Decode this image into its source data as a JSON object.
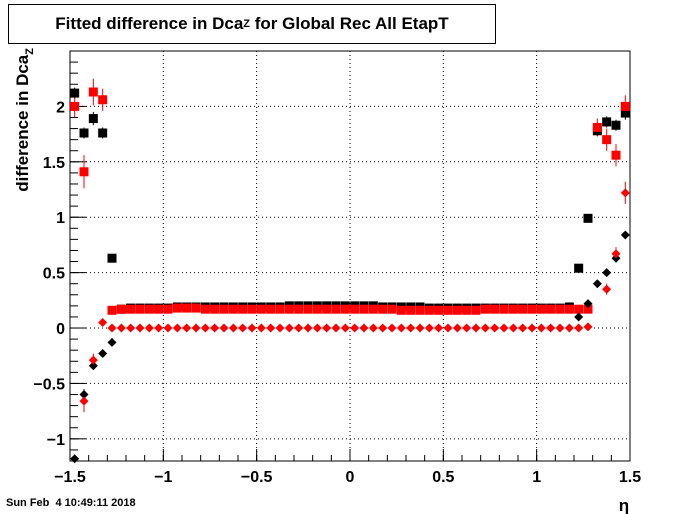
{
  "chart_data": {
    "type": "scatter",
    "title": {
      "main": "Fitted difference in Dca",
      "sub": "Z",
      "rest": " for Global Rec All EtapT"
    },
    "xlabel": "η",
    "ylabel": "difference in Dca",
    "ylabel_sub": "Z",
    "xlim": [
      -1.5,
      1.5
    ],
    "ylim": [
      -1.2,
      2.5
    ],
    "xticks": [
      {
        "v": -1.5,
        "label": "−1.5"
      },
      {
        "v": -1.0,
        "label": "−1"
      },
      {
        "v": -0.5,
        "label": "−0.5"
      },
      {
        "v": 0.0,
        "label": "0"
      },
      {
        "v": 0.5,
        "label": "0.5"
      },
      {
        "v": 1.0,
        "label": "1"
      },
      {
        "v": 1.5,
        "label": "1.5"
      }
    ],
    "yticks": [
      {
        "v": -1.0,
        "label": "−1"
      },
      {
        "v": -0.5,
        "label": "−0.5"
      },
      {
        "v": 0.0,
        "label": "0"
      },
      {
        "v": 0.5,
        "label": "0.5"
      },
      {
        "v": 1.0,
        "label": "1"
      },
      {
        "v": 1.5,
        "label": "1.5"
      },
      {
        "v": 2.0,
        "label": "2"
      }
    ],
    "grid": true,
    "series": [
      {
        "marker": "square",
        "color": "#000000",
        "points": [
          {
            "x": -1.475,
            "y": 2.12,
            "e": 0.05
          },
          {
            "x": -1.425,
            "y": 1.76,
            "e": 0.05
          },
          {
            "x": -1.375,
            "y": 1.89,
            "e": 0.06
          },
          {
            "x": -1.325,
            "y": 1.76,
            "e": 0.05
          },
          {
            "x": -1.275,
            "y": 0.63,
            "e": 0.02
          },
          {
            "x": -1.225,
            "y": 0.17,
            "e": 0
          },
          {
            "x": -1.175,
            "y": 0.18,
            "e": 0
          },
          {
            "x": -1.125,
            "y": 0.18,
            "e": 0
          },
          {
            "x": -1.075,
            "y": 0.18,
            "e": 0
          },
          {
            "x": -1.025,
            "y": 0.18,
            "e": 0
          },
          {
            "x": -0.975,
            "y": 0.18,
            "e": 0
          },
          {
            "x": -0.925,
            "y": 0.19,
            "e": 0
          },
          {
            "x": -0.875,
            "y": 0.19,
            "e": 0
          },
          {
            "x": -0.825,
            "y": 0.19,
            "e": 0
          },
          {
            "x": -0.775,
            "y": 0.19,
            "e": 0
          },
          {
            "x": -0.725,
            "y": 0.19,
            "e": 0
          },
          {
            "x": -0.675,
            "y": 0.19,
            "e": 0
          },
          {
            "x": -0.625,
            "y": 0.19,
            "e": 0
          },
          {
            "x": -0.575,
            "y": 0.19,
            "e": 0
          },
          {
            "x": -0.525,
            "y": 0.19,
            "e": 0
          },
          {
            "x": -0.475,
            "y": 0.19,
            "e": 0
          },
          {
            "x": -0.425,
            "y": 0.19,
            "e": 0
          },
          {
            "x": -0.375,
            "y": 0.19,
            "e": 0
          },
          {
            "x": -0.325,
            "y": 0.2,
            "e": 0
          },
          {
            "x": -0.275,
            "y": 0.2,
            "e": 0
          },
          {
            "x": -0.225,
            "y": 0.2,
            "e": 0
          },
          {
            "x": -0.175,
            "y": 0.2,
            "e": 0
          },
          {
            "x": -0.125,
            "y": 0.2,
            "e": 0
          },
          {
            "x": -0.075,
            "y": 0.2,
            "e": 0
          },
          {
            "x": -0.025,
            "y": 0.2,
            "e": 0
          },
          {
            "x": 0.025,
            "y": 0.2,
            "e": 0
          },
          {
            "x": 0.075,
            "y": 0.2,
            "e": 0
          },
          {
            "x": 0.125,
            "y": 0.2,
            "e": 0
          },
          {
            "x": 0.175,
            "y": 0.19,
            "e": 0
          },
          {
            "x": 0.225,
            "y": 0.19,
            "e": 0
          },
          {
            "x": 0.275,
            "y": 0.19,
            "e": 0
          },
          {
            "x": 0.325,
            "y": 0.19,
            "e": 0
          },
          {
            "x": 0.375,
            "y": 0.19,
            "e": 0
          },
          {
            "x": 0.425,
            "y": 0.18,
            "e": 0
          },
          {
            "x": 0.475,
            "y": 0.18,
            "e": 0
          },
          {
            "x": 0.525,
            "y": 0.18,
            "e": 0
          },
          {
            "x": 0.575,
            "y": 0.18,
            "e": 0
          },
          {
            "x": 0.625,
            "y": 0.18,
            "e": 0
          },
          {
            "x": 0.675,
            "y": 0.18,
            "e": 0
          },
          {
            "x": 0.725,
            "y": 0.18,
            "e": 0
          },
          {
            "x": 0.775,
            "y": 0.18,
            "e": 0
          },
          {
            "x": 0.825,
            "y": 0.18,
            "e": 0
          },
          {
            "x": 0.875,
            "y": 0.18,
            "e": 0
          },
          {
            "x": 0.925,
            "y": 0.18,
            "e": 0
          },
          {
            "x": 0.975,
            "y": 0.18,
            "e": 0
          },
          {
            "x": 1.025,
            "y": 0.18,
            "e": 0
          },
          {
            "x": 1.075,
            "y": 0.18,
            "e": 0
          },
          {
            "x": 1.125,
            "y": 0.18,
            "e": 0
          },
          {
            "x": 1.175,
            "y": 0.19,
            "e": 0
          },
          {
            "x": 1.225,
            "y": 0.54,
            "e": 0.02
          },
          {
            "x": 1.275,
            "y": 0.99,
            "e": 0.02
          },
          {
            "x": 1.325,
            "y": 1.78,
            "e": 0.05
          },
          {
            "x": 1.375,
            "y": 1.86,
            "e": 0.05
          },
          {
            "x": 1.425,
            "y": 1.83,
            "e": 0.05
          },
          {
            "x": 1.475,
            "y": 1.94,
            "e": 0.06
          }
        ]
      },
      {
        "marker": "square",
        "color": "#ff0000",
        "points": [
          {
            "x": -1.475,
            "y": 2.0,
            "e": 0.1
          },
          {
            "x": -1.425,
            "y": 1.41,
            "e": 0.15
          },
          {
            "x": -1.375,
            "y": 2.13,
            "e": 0.12
          },
          {
            "x": -1.325,
            "y": 2.06,
            "e": 0.1
          },
          {
            "x": -1.275,
            "y": 0.16,
            "e": 0
          },
          {
            "x": -1.225,
            "y": 0.17,
            "e": 0
          },
          {
            "x": -1.175,
            "y": 0.17,
            "e": 0
          },
          {
            "x": -1.125,
            "y": 0.17,
            "e": 0
          },
          {
            "x": -1.075,
            "y": 0.17,
            "e": 0
          },
          {
            "x": -1.025,
            "y": 0.17,
            "e": 0
          },
          {
            "x": -0.975,
            "y": 0.17,
            "e": 0
          },
          {
            "x": -0.925,
            "y": 0.18,
            "e": 0
          },
          {
            "x": -0.875,
            "y": 0.18,
            "e": 0
          },
          {
            "x": -0.825,
            "y": 0.18,
            "e": 0
          },
          {
            "x": -0.775,
            "y": 0.17,
            "e": 0
          },
          {
            "x": -0.725,
            "y": 0.17,
            "e": 0
          },
          {
            "x": -0.675,
            "y": 0.17,
            "e": 0
          },
          {
            "x": -0.625,
            "y": 0.17,
            "e": 0
          },
          {
            "x": -0.575,
            "y": 0.17,
            "e": 0
          },
          {
            "x": -0.525,
            "y": 0.17,
            "e": 0
          },
          {
            "x": -0.475,
            "y": 0.17,
            "e": 0
          },
          {
            "x": -0.425,
            "y": 0.17,
            "e": 0
          },
          {
            "x": -0.375,
            "y": 0.17,
            "e": 0
          },
          {
            "x": -0.325,
            "y": 0.17,
            "e": 0
          },
          {
            "x": -0.275,
            "y": 0.17,
            "e": 0
          },
          {
            "x": -0.225,
            "y": 0.17,
            "e": 0
          },
          {
            "x": -0.175,
            "y": 0.17,
            "e": 0
          },
          {
            "x": -0.125,
            "y": 0.17,
            "e": 0
          },
          {
            "x": -0.075,
            "y": 0.17,
            "e": 0
          },
          {
            "x": -0.025,
            "y": 0.17,
            "e": 0
          },
          {
            "x": 0.025,
            "y": 0.17,
            "e": 0
          },
          {
            "x": 0.075,
            "y": 0.17,
            "e": 0
          },
          {
            "x": 0.125,
            "y": 0.17,
            "e": 0
          },
          {
            "x": 0.175,
            "y": 0.17,
            "e": 0
          },
          {
            "x": 0.225,
            "y": 0.17,
            "e": 0
          },
          {
            "x": 0.275,
            "y": 0.16,
            "e": 0
          },
          {
            "x": 0.325,
            "y": 0.16,
            "e": 0
          },
          {
            "x": 0.375,
            "y": 0.16,
            "e": 0
          },
          {
            "x": 0.425,
            "y": 0.16,
            "e": 0
          },
          {
            "x": 0.475,
            "y": 0.16,
            "e": 0
          },
          {
            "x": 0.525,
            "y": 0.16,
            "e": 0
          },
          {
            "x": 0.575,
            "y": 0.16,
            "e": 0
          },
          {
            "x": 0.625,
            "y": 0.16,
            "e": 0
          },
          {
            "x": 0.675,
            "y": 0.16,
            "e": 0
          },
          {
            "x": 0.725,
            "y": 0.17,
            "e": 0
          },
          {
            "x": 0.775,
            "y": 0.17,
            "e": 0
          },
          {
            "x": 0.825,
            "y": 0.17,
            "e": 0
          },
          {
            "x": 0.875,
            "y": 0.17,
            "e": 0
          },
          {
            "x": 0.925,
            "y": 0.17,
            "e": 0
          },
          {
            "x": 0.975,
            "y": 0.17,
            "e": 0
          },
          {
            "x": 1.025,
            "y": 0.17,
            "e": 0
          },
          {
            "x": 1.075,
            "y": 0.17,
            "e": 0
          },
          {
            "x": 1.125,
            "y": 0.17,
            "e": 0
          },
          {
            "x": 1.175,
            "y": 0.17,
            "e": 0
          },
          {
            "x": 1.225,
            "y": 0.17,
            "e": 0
          },
          {
            "x": 1.275,
            "y": 0.17,
            "e": 0
          },
          {
            "x": 1.325,
            "y": 1.81,
            "e": 0.08
          },
          {
            "x": 1.375,
            "y": 1.7,
            "e": 0.1
          },
          {
            "x": 1.425,
            "y": 1.56,
            "e": 0.1
          },
          {
            "x": 1.475,
            "y": 2.0,
            "e": 0.1
          }
        ]
      },
      {
        "marker": "diamond",
        "color": "#000000",
        "points": [
          {
            "x": -1.475,
            "y": -1.18,
            "e": 0.03
          },
          {
            "x": -1.425,
            "y": -0.6,
            "e": 0.05
          },
          {
            "x": -1.375,
            "y": -0.34,
            "e": 0.03
          },
          {
            "x": -1.325,
            "y": -0.23,
            "e": 0.02
          },
          {
            "x": -1.275,
            "y": -0.13,
            "e": 0.01
          },
          {
            "x": 1.225,
            "y": 0.1,
            "e": 0.01
          },
          {
            "x": 1.275,
            "y": 0.22,
            "e": 0.02
          },
          {
            "x": 1.325,
            "y": 0.4,
            "e": 0.02
          },
          {
            "x": 1.375,
            "y": 0.5,
            "e": 0.02
          },
          {
            "x": 1.425,
            "y": 0.63,
            "e": 0.03
          },
          {
            "x": 1.475,
            "y": 0.84,
            "e": 0.03
          }
        ]
      },
      {
        "marker": "diamond",
        "color": "#ff0000",
        "points": [
          {
            "x": -1.425,
            "y": -0.66,
            "e": 0.1
          },
          {
            "x": -1.375,
            "y": -0.29,
            "e": 0.06
          },
          {
            "x": -1.325,
            "y": 0.05,
            "e": 0.03
          },
          {
            "x": -1.275,
            "y": 0.0,
            "e": 0
          },
          {
            "x": -1.225,
            "y": 0.0,
            "e": 0
          },
          {
            "x": -1.175,
            "y": 0.0,
            "e": 0
          },
          {
            "x": -1.125,
            "y": 0.0,
            "e": 0
          },
          {
            "x": -1.075,
            "y": 0.0,
            "e": 0
          },
          {
            "x": -1.025,
            "y": 0.0,
            "e": 0
          },
          {
            "x": -0.975,
            "y": 0.0,
            "e": 0
          },
          {
            "x": -0.925,
            "y": 0.0,
            "e": 0
          },
          {
            "x": -0.875,
            "y": 0.0,
            "e": 0
          },
          {
            "x": -0.825,
            "y": 0.0,
            "e": 0
          },
          {
            "x": -0.775,
            "y": 0.0,
            "e": 0
          },
          {
            "x": -0.725,
            "y": 0.0,
            "e": 0
          },
          {
            "x": -0.675,
            "y": 0.0,
            "e": 0
          },
          {
            "x": -0.625,
            "y": 0.0,
            "e": 0
          },
          {
            "x": -0.575,
            "y": 0.0,
            "e": 0
          },
          {
            "x": -0.525,
            "y": 0.0,
            "e": 0
          },
          {
            "x": -0.475,
            "y": 0.0,
            "e": 0
          },
          {
            "x": -0.425,
            "y": 0.0,
            "e": 0
          },
          {
            "x": -0.375,
            "y": 0.0,
            "e": 0
          },
          {
            "x": -0.325,
            "y": 0.0,
            "e": 0
          },
          {
            "x": -0.275,
            "y": 0.0,
            "e": 0
          },
          {
            "x": -0.225,
            "y": 0.0,
            "e": 0
          },
          {
            "x": -0.175,
            "y": 0.0,
            "e": 0
          },
          {
            "x": -0.125,
            "y": 0.0,
            "e": 0
          },
          {
            "x": -0.075,
            "y": 0.0,
            "e": 0
          },
          {
            "x": -0.025,
            "y": 0.0,
            "e": 0
          },
          {
            "x": 0.025,
            "y": 0.0,
            "e": 0
          },
          {
            "x": 0.075,
            "y": 0.0,
            "e": 0
          },
          {
            "x": 0.125,
            "y": 0.0,
            "e": 0
          },
          {
            "x": 0.175,
            "y": 0.0,
            "e": 0
          },
          {
            "x": 0.225,
            "y": 0.0,
            "e": 0
          },
          {
            "x": 0.275,
            "y": 0.0,
            "e": 0
          },
          {
            "x": 0.325,
            "y": 0.0,
            "e": 0
          },
          {
            "x": 0.375,
            "y": 0.0,
            "e": 0
          },
          {
            "x": 0.425,
            "y": 0.0,
            "e": 0
          },
          {
            "x": 0.475,
            "y": 0.0,
            "e": 0
          },
          {
            "x": 0.525,
            "y": 0.0,
            "e": 0
          },
          {
            "x": 0.575,
            "y": 0.0,
            "e": 0
          },
          {
            "x": 0.625,
            "y": 0.0,
            "e": 0
          },
          {
            "x": 0.675,
            "y": 0.0,
            "e": 0
          },
          {
            "x": 0.725,
            "y": 0.0,
            "e": 0
          },
          {
            "x": 0.775,
            "y": 0.0,
            "e": 0
          },
          {
            "x": 0.825,
            "y": 0.0,
            "e": 0
          },
          {
            "x": 0.875,
            "y": 0.0,
            "e": 0
          },
          {
            "x": 0.925,
            "y": 0.0,
            "e": 0
          },
          {
            "x": 0.975,
            "y": 0.0,
            "e": 0
          },
          {
            "x": 1.025,
            "y": 0.0,
            "e": 0
          },
          {
            "x": 1.075,
            "y": 0.0,
            "e": 0
          },
          {
            "x": 1.125,
            "y": 0.0,
            "e": 0
          },
          {
            "x": 1.175,
            "y": 0.0,
            "e": 0
          },
          {
            "x": 1.225,
            "y": 0.0,
            "e": 0
          },
          {
            "x": 1.275,
            "y": 0.01,
            "e": 0
          },
          {
            "x": 1.375,
            "y": 0.35,
            "e": 0.05
          },
          {
            "x": 1.425,
            "y": 0.67,
            "e": 0.06
          },
          {
            "x": 1.475,
            "y": 1.22,
            "e": 0.1
          }
        ]
      }
    ]
  },
  "footer": {
    "datestamp": "Sun Feb  4 10:49:11 2018"
  }
}
